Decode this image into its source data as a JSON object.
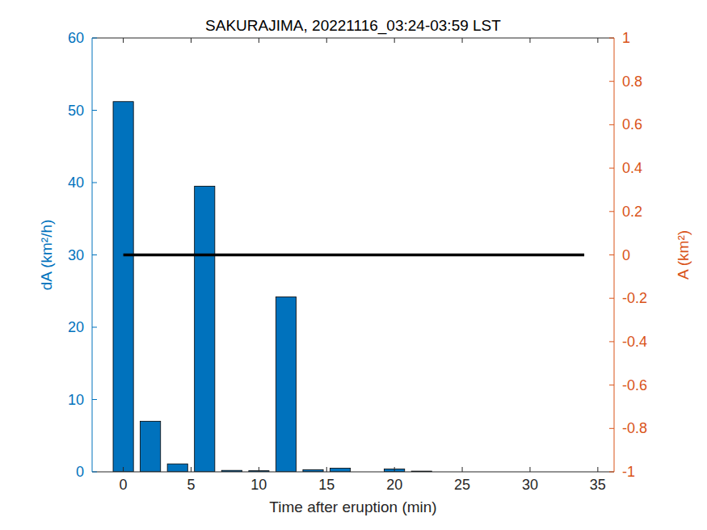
{
  "chart_data": {
    "type": "bar",
    "title": "SAKURAJIMA, 20221116_03:24-03:59 LST",
    "x_label": "Time after eruption (min)",
    "y_label": "dA (km²/h)",
    "y2_label": "A (km²)",
    "x": [
      0,
      2,
      4,
      6,
      8,
      10,
      12,
      14,
      16,
      18,
      20,
      22,
      24,
      26,
      28,
      30,
      32,
      34
    ],
    "series": [
      {
        "type": "bar",
        "color": "#0072bd",
        "axis": "y",
        "values": [
          51.2,
          7.0,
          1.1,
          39.5,
          0.2,
          0.15,
          24.2,
          0.3,
          0.5,
          0,
          0.4,
          0.1,
          0,
          0,
          0,
          0,
          0,
          0
        ]
      },
      {
        "type": "line",
        "color": "#000000",
        "axis": "y2",
        "values": [
          0,
          0,
          0,
          0,
          0,
          0,
          0,
          0,
          0,
          0,
          0,
          0,
          0,
          0,
          0,
          0,
          0,
          0
        ]
      }
    ],
    "xlim": [
      -2.3,
      36.2
    ],
    "xticks": [
      0,
      5,
      10,
      15,
      20,
      25,
      30,
      35
    ],
    "ylim": [
      0,
      60
    ],
    "yticks": [
      0,
      10,
      20,
      30,
      40,
      50,
      60
    ],
    "y2lim": [
      -1,
      1
    ],
    "y2ticks": [
      -1,
      -0.8,
      -0.6,
      -0.4,
      -0.2,
      0,
      0.2,
      0.4,
      0.6,
      0.8,
      1
    ],
    "y_color": "#0072bd",
    "y2_color": "#d95319",
    "grid": false
  }
}
